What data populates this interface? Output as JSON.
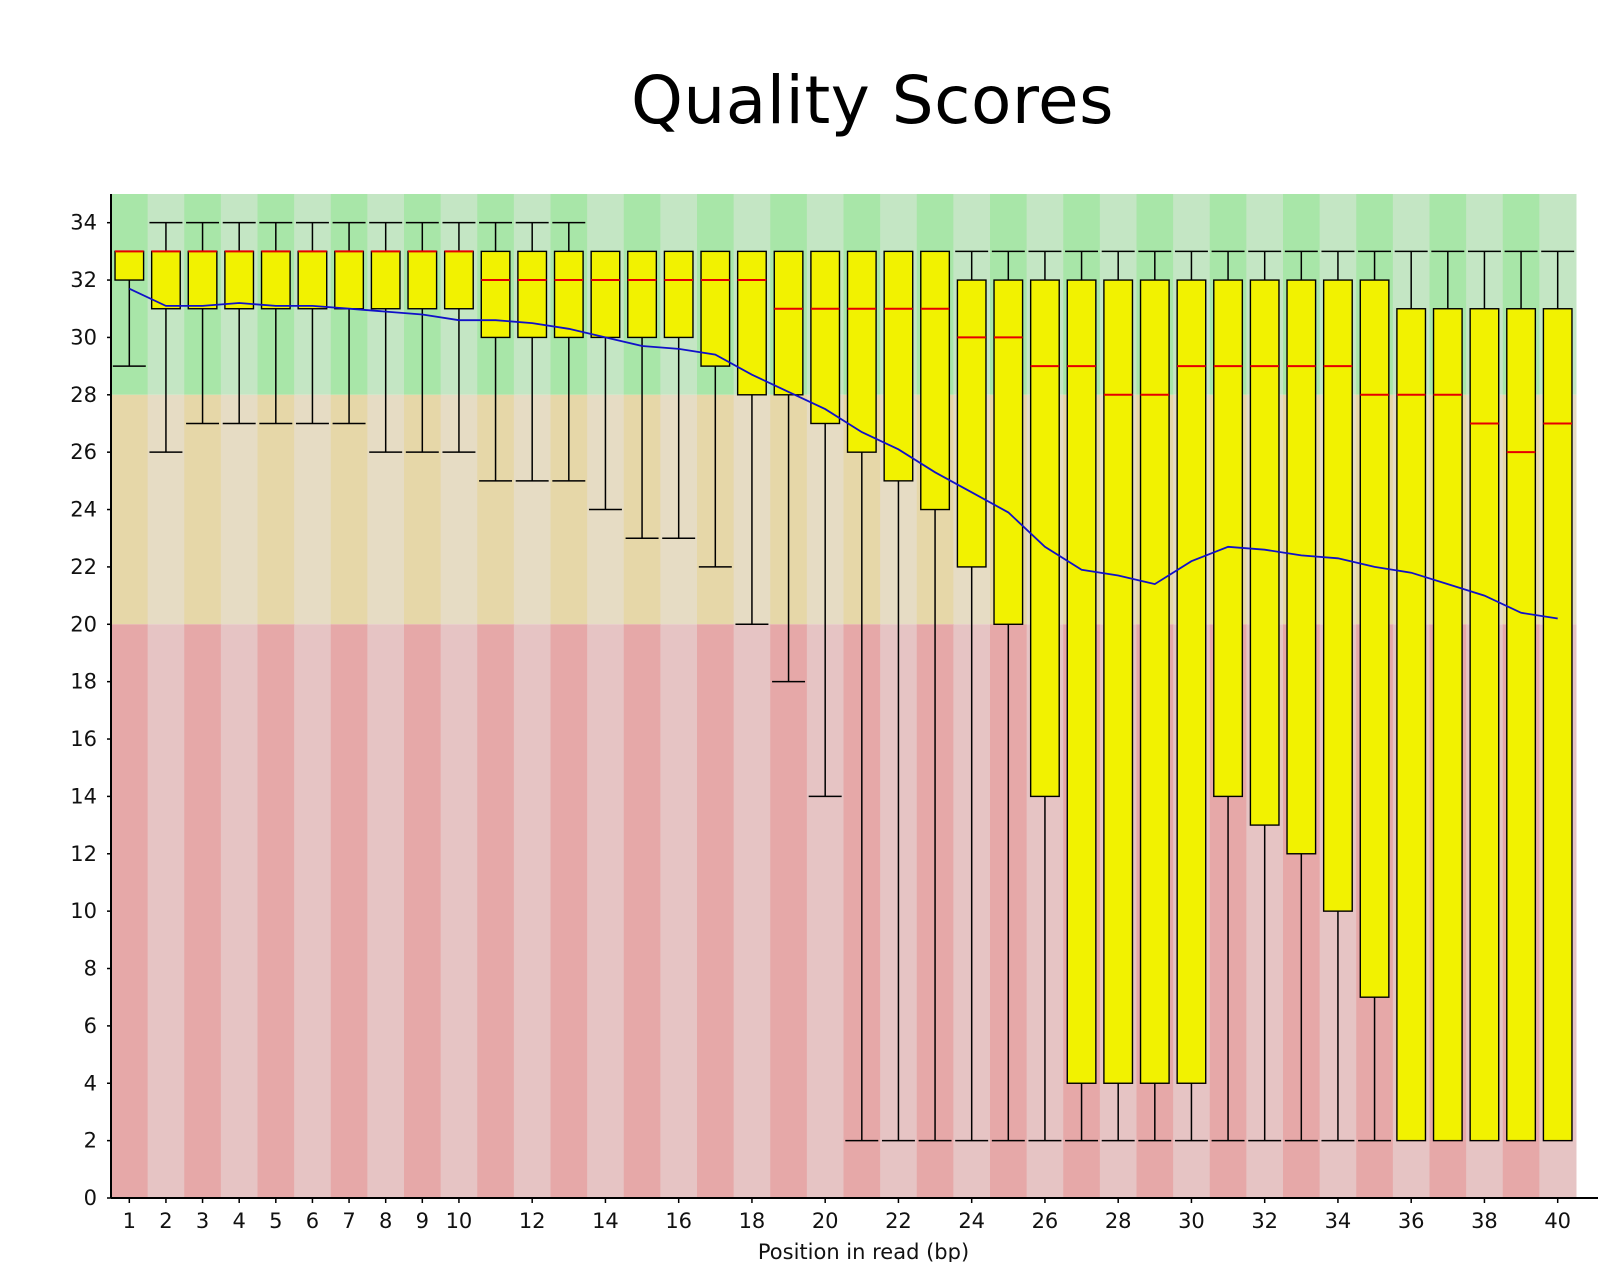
{
  "chart_data": {
    "type": "box",
    "title": "Quality Scores",
    "xlabel": "Position in read (bp)",
    "ylabel": "",
    "ylim": [
      0,
      35
    ],
    "yticks": [
      0,
      2,
      4,
      6,
      8,
      10,
      12,
      14,
      16,
      18,
      20,
      22,
      24,
      26,
      28,
      30,
      32,
      34
    ],
    "xtick_labels": [
      "1",
      "2",
      "3",
      "4",
      "5",
      "6",
      "7",
      "8",
      "9",
      "10",
      "12",
      "14",
      "16",
      "18",
      "20",
      "22",
      "24",
      "26",
      "28",
      "30",
      "32",
      "34",
      "36",
      "38",
      "40"
    ],
    "xtick_positions": [
      1,
      2,
      3,
      4,
      5,
      6,
      7,
      8,
      9,
      10,
      12,
      14,
      16,
      18,
      20,
      22,
      24,
      26,
      28,
      30,
      32,
      34,
      36,
      38,
      40
    ],
    "background_bands": [
      {
        "from": 28,
        "to": 35,
        "zone": "good",
        "colors": [
          "#a8e6a8",
          "#c4e6c4"
        ]
      },
      {
        "from": 20,
        "to": 28,
        "zone": "reasonable",
        "colors": [
          "#e6d7a8",
          "#e6dcc4"
        ]
      },
      {
        "from": 0,
        "to": 20,
        "zone": "poor",
        "colors": [
          "#e6a8a8",
          "#e6c4c4"
        ]
      }
    ],
    "colors": {
      "box": "#f2f200",
      "median": "#e60000",
      "mean": "#1010c8",
      "whisker": "#000000"
    },
    "positions": [
      1,
      2,
      3,
      4,
      5,
      6,
      7,
      8,
      9,
      10,
      11,
      12,
      13,
      14,
      15,
      16,
      17,
      18,
      19,
      20,
      21,
      22,
      23,
      24,
      25,
      26,
      27,
      28,
      29,
      30,
      31,
      32,
      33,
      34,
      35,
      36,
      37,
      38,
      39,
      40
    ],
    "whisker_low": [
      29,
      26,
      27,
      27,
      27,
      27,
      27,
      26,
      26,
      26,
      25,
      25,
      25,
      24,
      23,
      23,
      22,
      20,
      18,
      14,
      2,
      2,
      2,
      2,
      2,
      2,
      2,
      2,
      2,
      2,
      2,
      2,
      2,
      2,
      2,
      2,
      2,
      2,
      2,
      2
    ],
    "q1": [
      32,
      31,
      31,
      31,
      31,
      31,
      31,
      31,
      31,
      31,
      30,
      30,
      30,
      30,
      30,
      30,
      29,
      28,
      28,
      27,
      26,
      25,
      24,
      22,
      20,
      14,
      4,
      4,
      4,
      4,
      14,
      13,
      12,
      10,
      7,
      2,
      2,
      2,
      2,
      2
    ],
    "median": [
      33,
      33,
      33,
      33,
      33,
      33,
      33,
      33,
      33,
      33,
      32,
      32,
      32,
      32,
      32,
      32,
      32,
      32,
      31,
      31,
      31,
      31,
      31,
      30,
      30,
      29,
      29,
      28,
      28,
      29,
      29,
      29,
      29,
      29,
      28,
      28,
      28,
      27,
      26,
      27
    ],
    "q3": [
      33,
      33,
      33,
      33,
      33,
      33,
      33,
      33,
      33,
      33,
      33,
      33,
      33,
      33,
      33,
      33,
      33,
      33,
      33,
      33,
      33,
      33,
      33,
      32,
      32,
      32,
      32,
      32,
      32,
      32,
      32,
      32,
      32,
      32,
      32,
      31,
      31,
      31,
      31,
      31
    ],
    "whisker_high": [
      33,
      34,
      34,
      34,
      34,
      34,
      34,
      34,
      34,
      34,
      34,
      34,
      34,
      33,
      33,
      33,
      33,
      33,
      33,
      33,
      33,
      33,
      33,
      33,
      33,
      33,
      33,
      33,
      33,
      33,
      33,
      33,
      33,
      33,
      33,
      33,
      33,
      33,
      33,
      33
    ],
    "mean": [
      31.7,
      31.1,
      31.1,
      31.2,
      31.1,
      31.1,
      31.0,
      30.9,
      30.8,
      30.6,
      30.6,
      30.5,
      30.3,
      30.0,
      29.7,
      29.6,
      29.4,
      28.7,
      28.1,
      27.5,
      26.7,
      26.1,
      25.3,
      24.6,
      23.9,
      22.7,
      21.9,
      21.7,
      21.4,
      22.2,
      22.7,
      22.6,
      22.4,
      22.3,
      22.0,
      21.8,
      21.4,
      21.0,
      20.4,
      20.2
    ]
  }
}
